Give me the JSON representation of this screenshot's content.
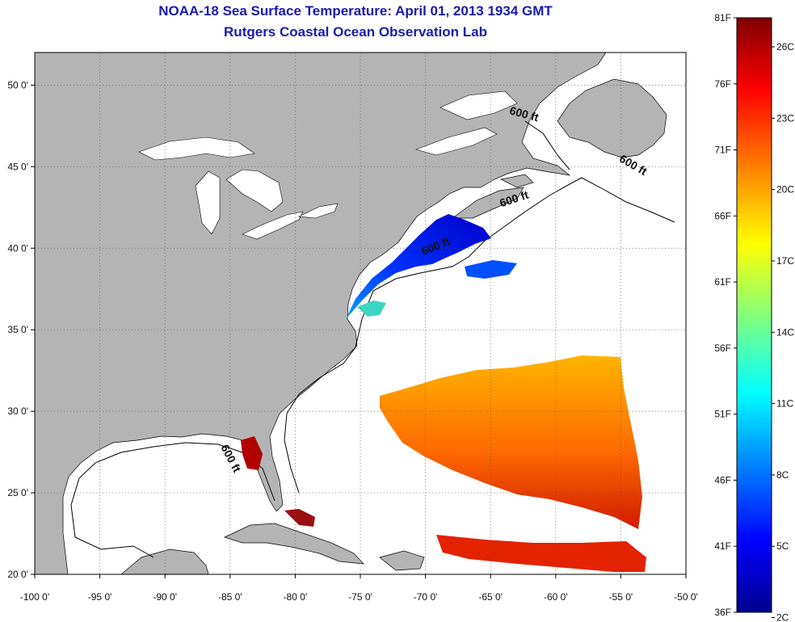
{
  "header": {
    "title": "NOAA-18 Sea Surface Temperature:  April 01, 2013 1934 GMT",
    "subtitle": "Rutgers Coastal Ocean Observation Lab"
  },
  "map": {
    "lon_range": [
      -100,
      -50
    ],
    "lat_range": [
      20,
      52
    ],
    "lon_ticks": [
      {
        "value": -100,
        "label": "-100 0'"
      },
      {
        "value": -95,
        "label": "-95 0'"
      },
      {
        "value": -90,
        "label": "-90 0'"
      },
      {
        "value": -85,
        "label": "-85 0'"
      },
      {
        "value": -80,
        "label": "-80 0'"
      },
      {
        "value": -75,
        "label": "-75 0'"
      },
      {
        "value": -70,
        "label": "-70 0'"
      },
      {
        "value": -65,
        "label": "-65 0'"
      },
      {
        "value": -60,
        "label": "-60 0'"
      },
      {
        "value": -55,
        "label": "-55 0'"
      },
      {
        "value": -50,
        "label": "-50 0'"
      }
    ],
    "lat_ticks": [
      {
        "value": 20,
        "label": "20 0'"
      },
      {
        "value": 25,
        "label": "25 0'"
      },
      {
        "value": 30,
        "label": "30 0'"
      },
      {
        "value": 35,
        "label": "35 0'"
      },
      {
        "value": 40,
        "label": "40 0'"
      },
      {
        "value": 45,
        "label": "45 0'"
      },
      {
        "value": 50,
        "label": "50 0'"
      }
    ],
    "grid": true,
    "land_color": "#b4b4b4",
    "ocean_color": "#ffffff",
    "isobath_labels": [
      {
        "text": "600 ft",
        "lon": -62.5,
        "lat": 48.0
      },
      {
        "text": "600 ft",
        "lon": -54.2,
        "lat": 44.9
      },
      {
        "text": "600 ft",
        "lon": -63.1,
        "lat": 42.8
      },
      {
        "text": "600 ft",
        "lon": -69.1,
        "lat": 39.9
      },
      {
        "text": "600 ft",
        "lon": -85.2,
        "lat": 27.0
      }
    ]
  },
  "colorbar": {
    "fahrenheit_labels": [
      "81F",
      "76F",
      "71F",
      "66F",
      "61F",
      "56F",
      "51F",
      "46F",
      "41F",
      "36F"
    ],
    "celsius_labels": [
      "26C",
      "23C",
      "20C",
      "17C",
      "14C",
      "11C",
      "8C",
      "5C",
      "2C"
    ],
    "range_f": [
      36,
      81
    ],
    "colors": [
      "#00008f",
      "#0000ff",
      "#00ffff",
      "#ffff00",
      "#ff7f00",
      "#ff0000",
      "#7f0000"
    ]
  }
}
